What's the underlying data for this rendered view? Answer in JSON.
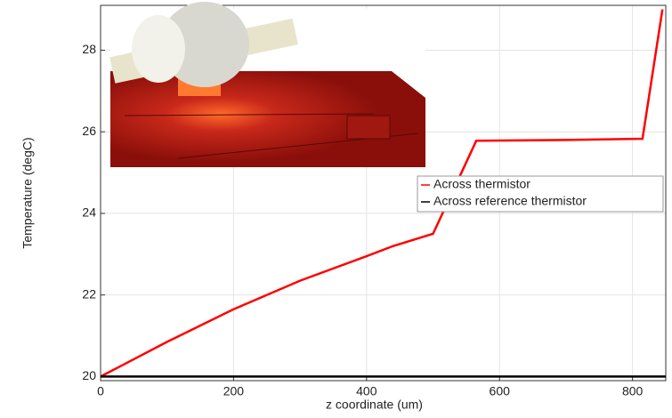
{
  "chart_data": {
    "type": "line",
    "x_label": "z coordinate (um)",
    "y_label": "Temperature (degC)",
    "xlim": [
      0,
      850
    ],
    "xticks": [
      0,
      200,
      400,
      600,
      800
    ],
    "ylim": [
      19.9,
      29.1
    ],
    "yticks": [
      20,
      22,
      24,
      26,
      28
    ],
    "grid": true,
    "legend": "right",
    "series": [
      {
        "name": "Across thermistor",
        "color": "#ff0000",
        "x": [
          0,
          100,
          200,
          300,
          400,
          440,
          500,
          565,
          700,
          815,
          845
        ],
        "values": [
          20,
          20.85,
          21.65,
          22.35,
          22.95,
          23.2,
          23.5,
          25.78,
          25.8,
          25.83,
          29
        ]
      },
      {
        "name": "Across reference thermistor",
        "color": "#000000",
        "x": [
          0,
          850
        ],
        "values": [
          20,
          20
        ]
      }
    ]
  }
}
